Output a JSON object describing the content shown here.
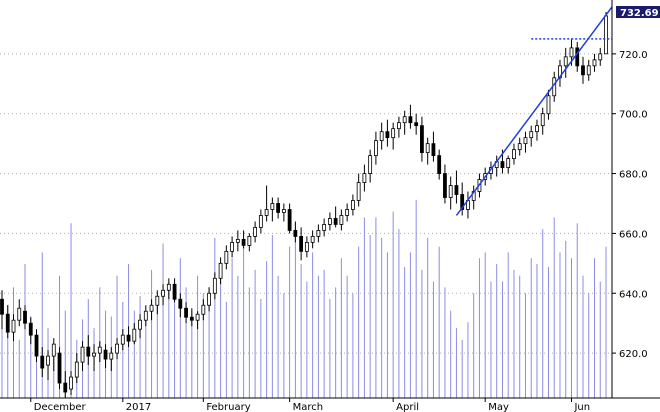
{
  "chart_data": {
    "type": "candlestick",
    "y_axis": {
      "min": 605,
      "max": 738,
      "ticks": [
        620,
        640,
        660,
        680,
        700,
        720
      ],
      "tick_labels": [
        "620.0",
        "640.0",
        "660.0",
        "680.0",
        "700.0",
        "720.0"
      ],
      "side": "right"
    },
    "x_axis": {
      "labels": [
        "December",
        "2017",
        "February",
        "March",
        "April",
        "May",
        "Jun"
      ]
    },
    "last_price_label": "732.69",
    "resistance_level": 725,
    "grid": true,
    "colors": {
      "volume": "#8c8ce6",
      "trendline": "#1f3fdc",
      "resistance": "#1f3fdc",
      "candle": "#000000",
      "grid": "#b0b0b0",
      "price_label_bg": "#1a1a6e"
    },
    "candles": [
      {
        "o": 638,
        "h": 641,
        "l": 628,
        "c": 633
      },
      {
        "o": 633,
        "h": 636,
        "l": 625,
        "c": 627
      },
      {
        "o": 627,
        "h": 633,
        "l": 624,
        "c": 631
      },
      {
        "o": 631,
        "h": 638,
        "l": 629,
        "c": 635
      },
      {
        "o": 634,
        "h": 636,
        "l": 628,
        "c": 630
      },
      {
        "o": 630,
        "h": 632,
        "l": 623,
        "c": 626
      },
      {
        "o": 626,
        "h": 628,
        "l": 617,
        "c": 619
      },
      {
        "o": 619,
        "h": 622,
        "l": 612,
        "c": 615
      },
      {
        "o": 616,
        "h": 621,
        "l": 611,
        "c": 619
      },
      {
        "o": 619,
        "h": 625,
        "l": 614,
        "c": 623
      },
      {
        "o": 620,
        "h": 622,
        "l": 608,
        "c": 610
      },
      {
        "o": 610,
        "h": 614,
        "l": 605,
        "c": 607
      },
      {
        "o": 608,
        "h": 614,
        "l": 606,
        "c": 612
      },
      {
        "o": 612,
        "h": 620,
        "l": 610,
        "c": 617
      },
      {
        "o": 617,
        "h": 624,
        "l": 614,
        "c": 622
      },
      {
        "o": 622,
        "h": 626,
        "l": 616,
        "c": 619
      },
      {
        "o": 619,
        "h": 623,
        "l": 614,
        "c": 620
      },
      {
        "o": 620,
        "h": 624,
        "l": 617,
        "c": 622
      },
      {
        "o": 621,
        "h": 623,
        "l": 615,
        "c": 618
      },
      {
        "o": 618,
        "h": 622,
        "l": 614,
        "c": 620
      },
      {
        "o": 620,
        "h": 625,
        "l": 618,
        "c": 623
      },
      {
        "o": 623,
        "h": 628,
        "l": 621,
        "c": 626
      },
      {
        "o": 626,
        "h": 629,
        "l": 622,
        "c": 624
      },
      {
        "o": 624,
        "h": 630,
        "l": 623,
        "c": 628
      },
      {
        "o": 628,
        "h": 633,
        "l": 625,
        "c": 631
      },
      {
        "o": 631,
        "h": 636,
        "l": 629,
        "c": 634
      },
      {
        "o": 634,
        "h": 638,
        "l": 631,
        "c": 636
      },
      {
        "o": 636,
        "h": 641,
        "l": 633,
        "c": 639
      },
      {
        "o": 639,
        "h": 643,
        "l": 636,
        "c": 641
      },
      {
        "o": 641,
        "h": 645,
        "l": 638,
        "c": 643
      },
      {
        "o": 643,
        "h": 645,
        "l": 637,
        "c": 638
      },
      {
        "o": 638,
        "h": 640,
        "l": 632,
        "c": 635
      },
      {
        "o": 635,
        "h": 637,
        "l": 630,
        "c": 632
      },
      {
        "o": 632,
        "h": 635,
        "l": 629,
        "c": 631
      },
      {
        "o": 631,
        "h": 634,
        "l": 628,
        "c": 633
      },
      {
        "o": 633,
        "h": 638,
        "l": 631,
        "c": 636
      },
      {
        "o": 636,
        "h": 642,
        "l": 634,
        "c": 640
      },
      {
        "o": 640,
        "h": 647,
        "l": 638,
        "c": 645
      },
      {
        "o": 645,
        "h": 652,
        "l": 643,
        "c": 650
      },
      {
        "o": 650,
        "h": 656,
        "l": 648,
        "c": 654
      },
      {
        "o": 654,
        "h": 659,
        "l": 652,
        "c": 657
      },
      {
        "o": 657,
        "h": 661,
        "l": 654,
        "c": 658
      },
      {
        "o": 658,
        "h": 661,
        "l": 655,
        "c": 656
      },
      {
        "o": 656,
        "h": 660,
        "l": 654,
        "c": 659
      },
      {
        "o": 659,
        "h": 664,
        "l": 657,
        "c": 662
      },
      {
        "o": 662,
        "h": 668,
        "l": 660,
        "c": 666
      },
      {
        "o": 666,
        "h": 676,
        "l": 664,
        "c": 668
      },
      {
        "o": 668,
        "h": 672,
        "l": 664,
        "c": 670
      },
      {
        "o": 670,
        "h": 672,
        "l": 665,
        "c": 667
      },
      {
        "o": 667,
        "h": 670,
        "l": 664,
        "c": 668
      },
      {
        "o": 668,
        "h": 670,
        "l": 660,
        "c": 661
      },
      {
        "o": 661,
        "h": 664,
        "l": 657,
        "c": 659
      },
      {
        "o": 659,
        "h": 662,
        "l": 651,
        "c": 654
      },
      {
        "o": 654,
        "h": 659,
        "l": 652,
        "c": 657
      },
      {
        "o": 657,
        "h": 661,
        "l": 655,
        "c": 659
      },
      {
        "o": 659,
        "h": 663,
        "l": 657,
        "c": 661
      },
      {
        "o": 661,
        "h": 665,
        "l": 659,
        "c": 663
      },
      {
        "o": 663,
        "h": 667,
        "l": 661,
        "c": 665
      },
      {
        "o": 665,
        "h": 669,
        "l": 662,
        "c": 663
      },
      {
        "o": 663,
        "h": 668,
        "l": 661,
        "c": 666
      },
      {
        "o": 666,
        "h": 670,
        "l": 664,
        "c": 668
      },
      {
        "o": 668,
        "h": 673,
        "l": 666,
        "c": 671
      },
      {
        "o": 671,
        "h": 680,
        "l": 669,
        "c": 677
      },
      {
        "o": 677,
        "h": 683,
        "l": 674,
        "c": 680
      },
      {
        "o": 680,
        "h": 688,
        "l": 677,
        "c": 686
      },
      {
        "o": 686,
        "h": 694,
        "l": 683,
        "c": 691
      },
      {
        "o": 691,
        "h": 697,
        "l": 688,
        "c": 694
      },
      {
        "o": 694,
        "h": 698,
        "l": 689,
        "c": 692
      },
      {
        "o": 692,
        "h": 697,
        "l": 688,
        "c": 695
      },
      {
        "o": 695,
        "h": 699,
        "l": 692,
        "c": 697
      },
      {
        "o": 697,
        "h": 701,
        "l": 693,
        "c": 699
      },
      {
        "o": 699,
        "h": 703,
        "l": 695,
        "c": 697
      },
      {
        "o": 697,
        "h": 700,
        "l": 693,
        "c": 696
      },
      {
        "o": 696,
        "h": 699,
        "l": 684,
        "c": 687
      },
      {
        "o": 687,
        "h": 692,
        "l": 683,
        "c": 690
      },
      {
        "o": 690,
        "h": 694,
        "l": 684,
        "c": 686
      },
      {
        "o": 686,
        "h": 688,
        "l": 678,
        "c": 680
      },
      {
        "o": 680,
        "h": 683,
        "l": 670,
        "c": 672
      },
      {
        "o": 672,
        "h": 679,
        "l": 668,
        "c": 676
      },
      {
        "o": 676,
        "h": 681,
        "l": 670,
        "c": 673
      },
      {
        "o": 673,
        "h": 677,
        "l": 666,
        "c": 668
      },
      {
        "o": 668,
        "h": 674,
        "l": 665,
        "c": 671
      },
      {
        "o": 671,
        "h": 676,
        "l": 668,
        "c": 674
      },
      {
        "o": 674,
        "h": 680,
        "l": 672,
        "c": 678
      },
      {
        "o": 678,
        "h": 682,
        "l": 676,
        "c": 680
      },
      {
        "o": 680,
        "h": 684,
        "l": 678,
        "c": 682
      },
      {
        "o": 682,
        "h": 686,
        "l": 679,
        "c": 684
      },
      {
        "o": 684,
        "h": 688,
        "l": 680,
        "c": 682
      },
      {
        "o": 682,
        "h": 686,
        "l": 680,
        "c": 685
      },
      {
        "o": 685,
        "h": 690,
        "l": 683,
        "c": 688
      },
      {
        "o": 688,
        "h": 692,
        "l": 686,
        "c": 690
      },
      {
        "o": 690,
        "h": 694,
        "l": 687,
        "c": 692
      },
      {
        "o": 692,
        "h": 696,
        "l": 689,
        "c": 694
      },
      {
        "o": 694,
        "h": 698,
        "l": 691,
        "c": 696
      },
      {
        "o": 696,
        "h": 702,
        "l": 693,
        "c": 700
      },
      {
        "o": 700,
        "h": 708,
        "l": 698,
        "c": 706
      },
      {
        "o": 706,
        "h": 714,
        "l": 704,
        "c": 712
      },
      {
        "o": 712,
        "h": 718,
        "l": 709,
        "c": 716
      },
      {
        "o": 716,
        "h": 722,
        "l": 712,
        "c": 719
      },
      {
        "o": 719,
        "h": 725,
        "l": 716,
        "c": 722
      },
      {
        "o": 722,
        "h": 724,
        "l": 714,
        "c": 716
      },
      {
        "o": 716,
        "h": 719,
        "l": 710,
        "c": 713
      },
      {
        "o": 713,
        "h": 718,
        "l": 711,
        "c": 716
      },
      {
        "o": 716,
        "h": 720,
        "l": 714,
        "c": 718
      },
      {
        "o": 718,
        "h": 722,
        "l": 716,
        "c": 720
      },
      {
        "o": 720,
        "h": 734,
        "l": 720,
        "c": 732.69
      }
    ],
    "volume": [
      26,
      32,
      38,
      20,
      46,
      28,
      18,
      50,
      24,
      18,
      42,
      30,
      60,
      20,
      27,
      34,
      24,
      38,
      30,
      28,
      42,
      33,
      46,
      30,
      35,
      28,
      44,
      33,
      53,
      40,
      35,
      48,
      38,
      30,
      42,
      36,
      38,
      55,
      44,
      33,
      48,
      42,
      52,
      38,
      44,
      34,
      47,
      56,
      42,
      36,
      52,
      60,
      46,
      40,
      50,
      42,
      44,
      34,
      38,
      48,
      42,
      36,
      52,
      62,
      56,
      62,
      55,
      50,
      64,
      58,
      45,
      50,
      68,
      44,
      55,
      40,
      52,
      38,
      30,
      24,
      20,
      26,
      36,
      48,
      50,
      40,
      46,
      40,
      50,
      44,
      42,
      36,
      48,
      46,
      58,
      45,
      62,
      50,
      54,
      48,
      60,
      42,
      36,
      48,
      40,
      52
    ]
  }
}
